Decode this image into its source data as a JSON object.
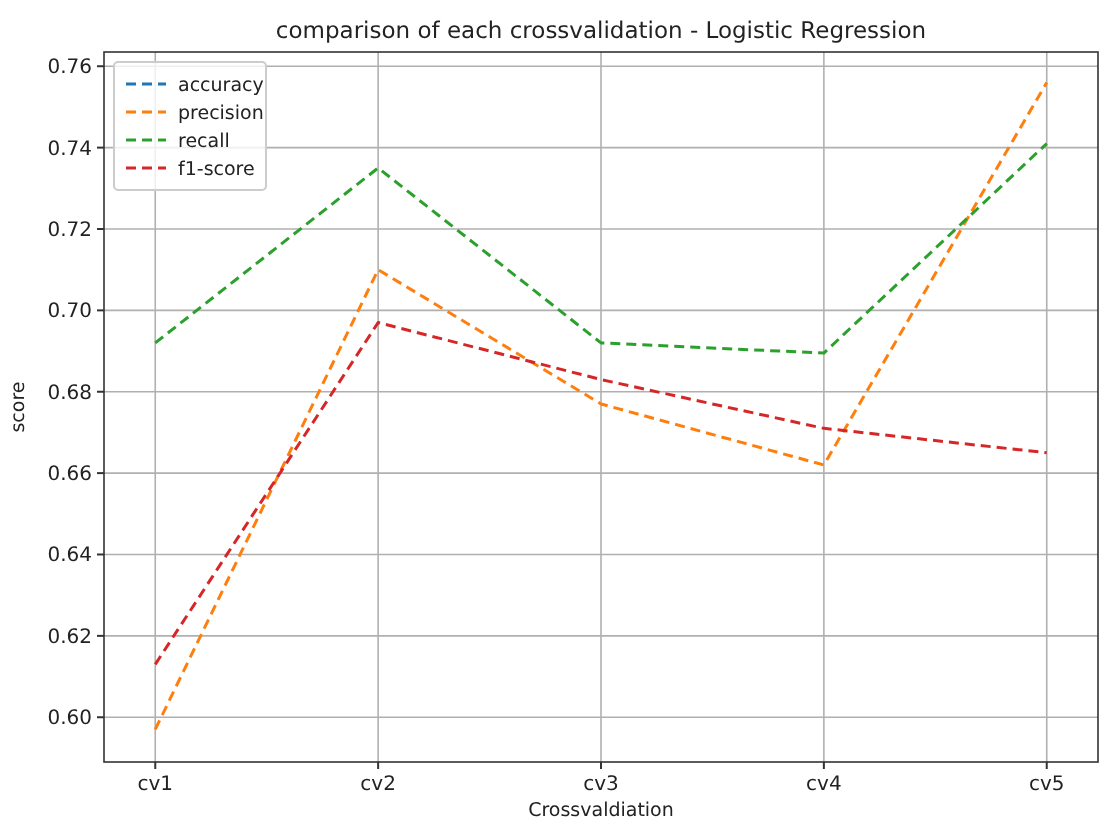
{
  "chart_data": {
    "type": "line",
    "title": "comparison of each crossvalidation - Logistic Regression",
    "xlabel": "Crossvaldiation",
    "ylabel": "score",
    "categories": [
      "cv1",
      "cv2",
      "cv3",
      "cv4",
      "cv5"
    ],
    "series": [
      {
        "name": "accuracy",
        "color": "#1f77b4",
        "values": [
          null,
          null,
          null,
          null,
          null
        ]
      },
      {
        "name": "precision",
        "color": "#ff7f0e",
        "values": [
          0.597,
          0.71,
          0.677,
          0.662,
          0.756
        ]
      },
      {
        "name": "recall",
        "color": "#2ca02c",
        "values": [
          0.692,
          0.735,
          0.692,
          0.6895,
          0.741
        ]
      },
      {
        "name": "f1-score",
        "color": "#d62728",
        "values": [
          0.613,
          0.697,
          0.683,
          0.671,
          0.665
        ]
      }
    ],
    "ylim": [
      0.589,
      0.7635
    ],
    "yticks": [
      {
        "value": 0.6,
        "label": "0.60"
      },
      {
        "value": 0.62,
        "label": "0.62"
      },
      {
        "value": 0.64,
        "label": "0.64"
      },
      {
        "value": 0.66,
        "label": "0.66"
      },
      {
        "value": 0.68,
        "label": "0.68"
      },
      {
        "value": 0.7,
        "label": "0.70"
      },
      {
        "value": 0.72,
        "label": "0.72"
      },
      {
        "value": 0.74,
        "label": "0.74"
      },
      {
        "value": 0.76,
        "label": "0.76"
      }
    ],
    "grid": true,
    "legend": "top left",
    "line_style": "dashed",
    "marker": "none"
  }
}
